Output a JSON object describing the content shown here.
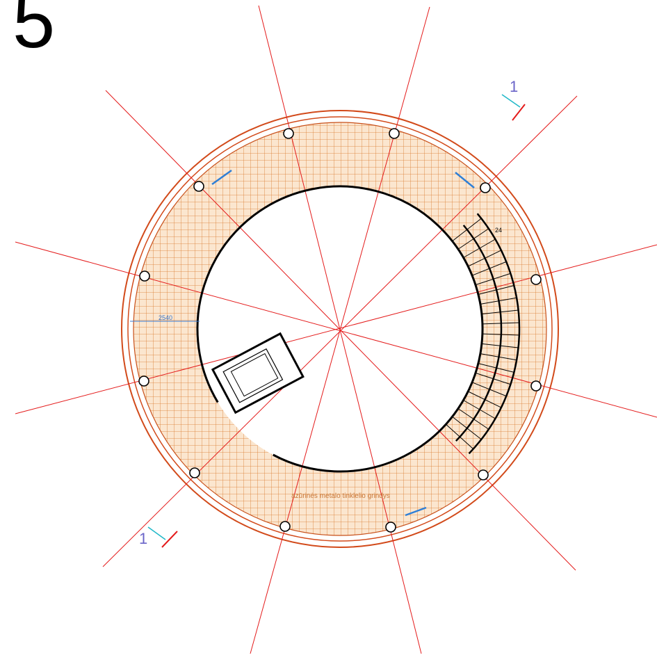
{
  "drawing": {
    "sheet_number": "5",
    "section_marks": [
      "1",
      "1"
    ],
    "stair_label": "24",
    "dimension": "2540",
    "floor_note": "azūrinės metalo tinklelio grindys"
  }
}
